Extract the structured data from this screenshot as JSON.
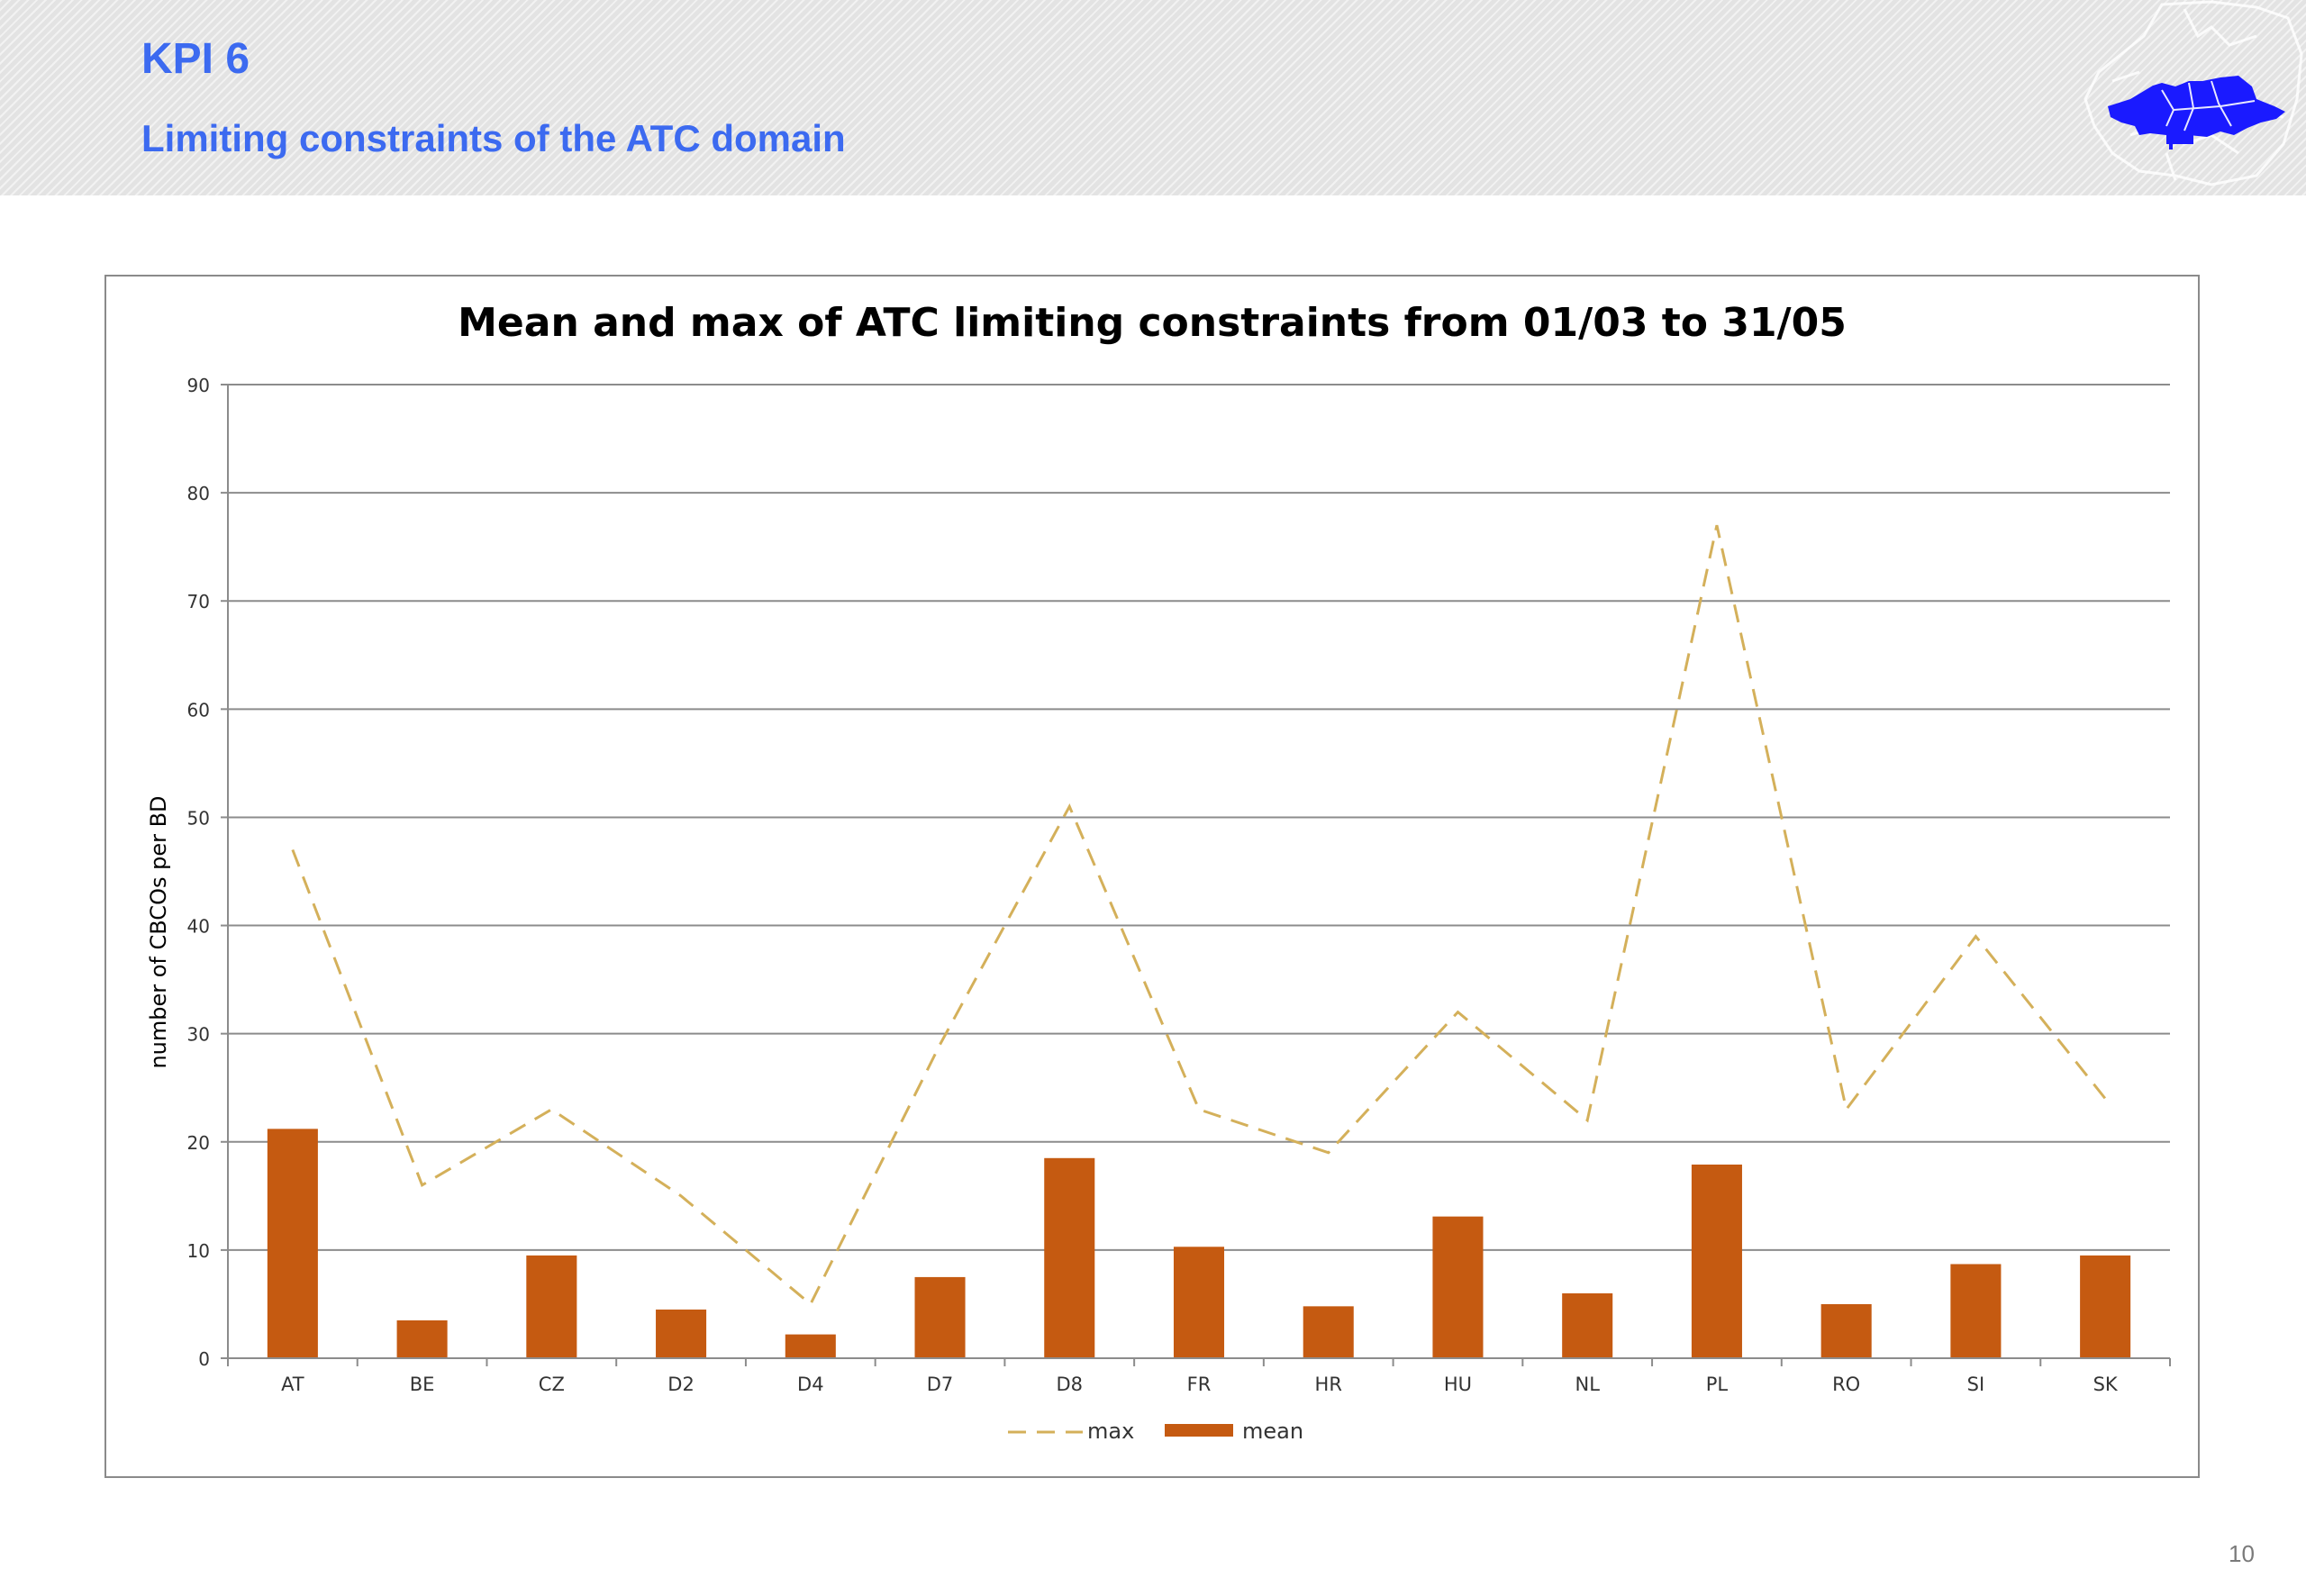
{
  "slide": {
    "title": "KPI 6",
    "subtitle": "Limiting constraints of the ATC domain",
    "page_number": "10",
    "logo_icon": "europe-map-icon",
    "accent_color": "#3c6af0"
  },
  "chart_data": {
    "type": "bar",
    "title": "Mean and max of ATC limiting constraints from 01/03 to 31/05",
    "xlabel": "",
    "ylabel": "number of CBCOs per BD",
    "ylim": [
      0,
      90
    ],
    "yticks": [
      0,
      10,
      20,
      30,
      40,
      50,
      60,
      70,
      80,
      90
    ],
    "grid": true,
    "legend_position": "bottom",
    "categories": [
      "AT",
      "BE",
      "CZ",
      "D2",
      "D4",
      "D7",
      "D8",
      "FR",
      "HR",
      "HU",
      "NL",
      "PL",
      "RO",
      "SI",
      "SK"
    ],
    "series": [
      {
        "name": "max",
        "type": "line",
        "style": "dashed",
        "color": "#d4b05a",
        "values": [
          47,
          16,
          23,
          15,
          5,
          29,
          51,
          23,
          19,
          32,
          22,
          77,
          23,
          39,
          24
        ]
      },
      {
        "name": "mean",
        "type": "bar",
        "color": "#c55a11",
        "values": [
          21.2,
          3.5,
          9.5,
          4.5,
          2.2,
          7.5,
          18.5,
          10.3,
          4.8,
          13.1,
          6.0,
          17.9,
          5.0,
          8.7,
          9.5
        ]
      }
    ]
  }
}
